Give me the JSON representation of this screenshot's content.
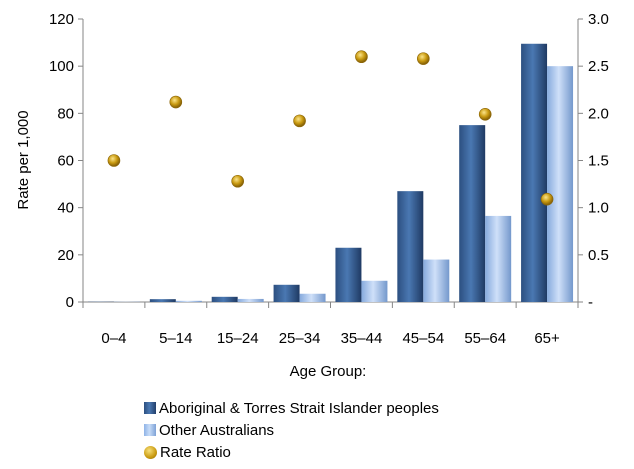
{
  "chart_data": {
    "type": "bar",
    "xlabel": "Age Group:",
    "ylabel": "Rate per 1,000",
    "categories": [
      "0–4",
      "5–14",
      "15–24",
      "25–34",
      "35–44",
      "45–54",
      "55–64",
      "65+"
    ],
    "ylim": [
      0,
      120
    ],
    "yticks": [
      "0",
      "20",
      "40",
      "60",
      "80",
      "100",
      "120"
    ],
    "y2lim": [
      0,
      3.0
    ],
    "y2ticks": [
      "-",
      "0.5",
      "1.0",
      "1.5",
      "2.0",
      "2.5",
      "3.0"
    ],
    "series": [
      {
        "name": "Aboriginal & Torres Strait Islander peoples",
        "axis": "left",
        "kind": "bar",
        "color": "#3b639a",
        "values": [
          0.1,
          1.2,
          2.2,
          7.3,
          23.0,
          47.0,
          75.0,
          109.5
        ]
      },
      {
        "name": "Other Australians",
        "axis": "left",
        "kind": "bar",
        "color": "#a9c6f0",
        "values": [
          0.1,
          0.5,
          1.3,
          3.5,
          9.0,
          18.0,
          36.5,
          100.0
        ]
      },
      {
        "name": "Rate Ratio",
        "axis": "right",
        "kind": "scatter",
        "color": "#d4a017",
        "values": [
          1.5,
          2.12,
          1.28,
          1.92,
          2.6,
          2.58,
          1.99,
          1.09
        ]
      }
    ],
    "legend_position": "bottom",
    "grid": false
  }
}
